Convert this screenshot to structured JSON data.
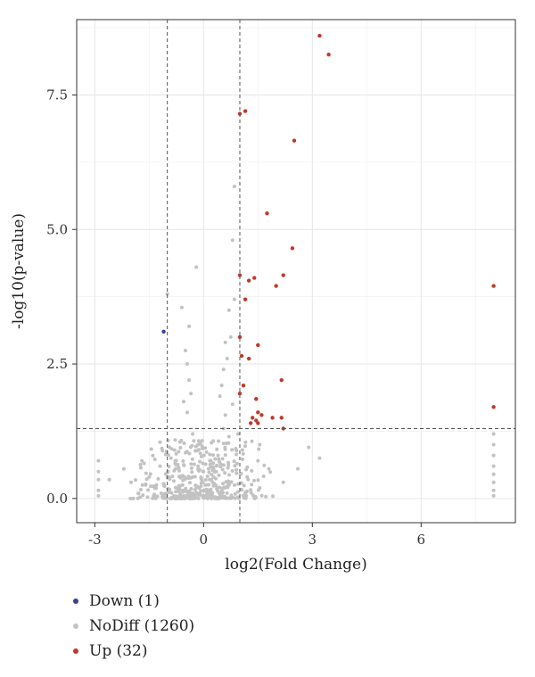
{
  "chart_data": {
    "type": "scatter",
    "title": "",
    "xlabel": "log2(Fold Change)",
    "ylabel": "-log10(p-value)",
    "xlim": [
      -3.5,
      8.6
    ],
    "ylim": [
      -0.45,
      8.9
    ],
    "xticks": [
      -3,
      0,
      3,
      6
    ],
    "yticks": [
      0.0,
      2.5,
      5.0,
      7.5
    ],
    "xtick_labels": [
      "-3",
      "0",
      "3",
      "6"
    ],
    "ytick_labels": [
      "0.0",
      "2.5",
      "5.0",
      "7.5"
    ],
    "grid": true,
    "thresholds": {
      "x": [
        -1,
        1
      ],
      "y": 1.3
    },
    "legend_position": "bottom-left",
    "legend": [
      {
        "key": "down",
        "label": "Down (1)",
        "color": "#3b3f8f"
      },
      {
        "key": "nodiff",
        "label": "NoDiff (1260)",
        "color": "#c2c2c2"
      },
      {
        "key": "up",
        "label": "Up (32)",
        "color": "#c0392b"
      }
    ],
    "series": [
      {
        "name": "Down (1)",
        "key": "down",
        "points": [
          [
            -1.1,
            3.1
          ]
        ]
      },
      {
        "name": "Up (32)",
        "key": "up",
        "points": [
          [
            3.2,
            8.6
          ],
          [
            3.45,
            8.25
          ],
          [
            1.0,
            7.15
          ],
          [
            1.15,
            7.2
          ],
          [
            2.5,
            6.65
          ],
          [
            1.75,
            5.3
          ],
          [
            2.45,
            4.65
          ],
          [
            1.0,
            4.15
          ],
          [
            1.25,
            4.05
          ],
          [
            1.4,
            4.1
          ],
          [
            2.0,
            3.95
          ],
          [
            2.2,
            4.15
          ],
          [
            8.0,
            3.95
          ],
          [
            1.15,
            3.7
          ],
          [
            1.0,
            3.0
          ],
          [
            1.5,
            2.85
          ],
          [
            1.05,
            2.65
          ],
          [
            1.25,
            2.6
          ],
          [
            2.15,
            2.2
          ],
          [
            1.1,
            2.1
          ],
          [
            1.0,
            1.95
          ],
          [
            1.45,
            1.85
          ],
          [
            8.0,
            1.7
          ],
          [
            1.5,
            1.6
          ],
          [
            1.6,
            1.55
          ],
          [
            1.35,
            1.5
          ],
          [
            1.9,
            1.5
          ],
          [
            2.15,
            1.5
          ],
          [
            1.3,
            1.4
          ],
          [
            1.5,
            1.4
          ],
          [
            2.2,
            1.3
          ],
          [
            1.45,
            1.45
          ]
        ]
      },
      {
        "name": "NoDiff (1260)",
        "key": "nodiff",
        "points": [
          [
            0.85,
            5.8
          ],
          [
            0.8,
            4.8
          ],
          [
            -0.2,
            4.3
          ],
          [
            -1.0,
            3.8
          ],
          [
            -0.6,
            3.55
          ],
          [
            0.7,
            3.5
          ],
          [
            0.85,
            3.7
          ],
          [
            -0.4,
            3.2
          ],
          [
            0.75,
            3.0
          ],
          [
            0.6,
            2.9
          ],
          [
            -0.5,
            2.75
          ],
          [
            -0.45,
            2.5
          ],
          [
            0.55,
            2.4
          ],
          [
            -0.4,
            2.2
          ],
          [
            0.5,
            2.1
          ],
          [
            0.65,
            2.6
          ],
          [
            -0.35,
            1.95
          ],
          [
            0.45,
            1.9
          ],
          [
            -0.55,
            1.8
          ],
          [
            0.8,
            1.75
          ],
          [
            -0.45,
            1.6
          ],
          [
            0.6,
            1.55
          ],
          [
            0.55,
            1.3
          ],
          [
            -0.3,
            1.2
          ],
          [
            0.7,
            1.15
          ],
          [
            -0.65,
            1.05
          ],
          [
            0.95,
            1.2
          ],
          [
            -0.8,
            0.9
          ],
          [
            -0.5,
            0.85
          ],
          [
            0.4,
            0.8
          ],
          [
            -0.9,
            0.75
          ],
          [
            0.9,
            0.9
          ],
          [
            -1.2,
            0.6
          ],
          [
            1.5,
            0.7
          ],
          [
            1.8,
            0.55
          ],
          [
            2.6,
            0.55
          ],
          [
            2.9,
            0.95
          ],
          [
            3.2,
            0.75
          ],
          [
            -2.9,
            0.7
          ],
          [
            -2.9,
            0.5
          ],
          [
            -2.9,
            0.35
          ],
          [
            -2.9,
            0.15
          ],
          [
            -2.9,
            0.05
          ],
          [
            -2.6,
            0.35
          ],
          [
            -2.2,
            0.55
          ],
          [
            -2.0,
            0.3
          ],
          [
            -1.7,
            0.7
          ],
          [
            -1.5,
            0.4
          ],
          [
            -1.3,
            0.25
          ],
          [
            8.0,
            1.2
          ],
          [
            8.0,
            1.0
          ],
          [
            8.0,
            0.8
          ],
          [
            8.0,
            0.6
          ],
          [
            8.0,
            0.45
          ],
          [
            8.0,
            0.3
          ],
          [
            8.0,
            0.15
          ],
          [
            8.0,
            0.05
          ],
          [
            2.2,
            0.3
          ],
          [
            1.2,
            0.4
          ],
          [
            -0.1,
            0.1
          ],
          [
            0.1,
            0.05
          ],
          [
            0.0,
            0.15
          ],
          [
            -0.2,
            0.2
          ],
          [
            0.25,
            0.3
          ],
          [
            -0.3,
            0.4
          ],
          [
            0.35,
            0.5
          ],
          [
            -0.15,
            0.6
          ],
          [
            0.2,
            0.7
          ],
          [
            -0.05,
            0.35
          ],
          [
            0.05,
            0.25
          ]
        ]
      }
    ]
  }
}
